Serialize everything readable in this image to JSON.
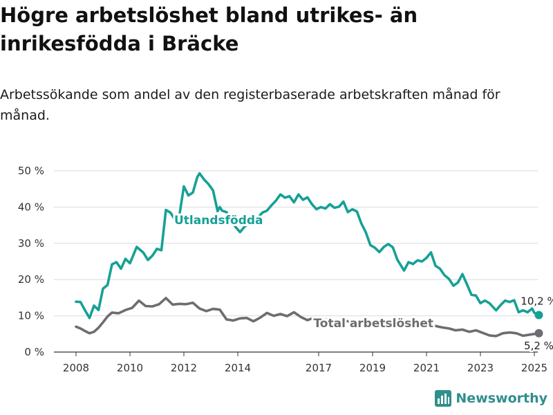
{
  "header": {
    "title": "Högre arbetslöshet bland utrikes- än inrikesfödda i Bräcke",
    "subtitle": "Arbetssökande som andel av den registerbaserade arbetskraften månad för månad."
  },
  "brand": {
    "name": "Newsworthy",
    "icon": "newsworthy-logo-icon",
    "color": "#2f8f8c"
  },
  "chart_data": {
    "type": "line",
    "title": "Högre arbetslöshet bland utrikes- än inrikesfödda i Bräcke",
    "subtitle": "Arbetssökande som andel av den registerbaserade arbetskraften månad för månad.",
    "xlabel": "",
    "ylabel": "",
    "x_range": [
      "2008-01",
      "2025-03"
    ],
    "x_ticks": [
      "2008",
      "2010",
      "2012",
      "2014",
      "2017",
      "2019",
      "2021",
      "2023",
      "2025"
    ],
    "y_range": [
      0,
      50
    ],
    "y_ticks": [
      0,
      10,
      20,
      30,
      40,
      50
    ],
    "y_tick_labels": [
      "0 %",
      "10 %",
      "20 %",
      "30 %",
      "40 %",
      "50 %"
    ],
    "grid": true,
    "series": [
      {
        "name": "Utlandsfödda",
        "color": "#16a096",
        "end_label": "10,2 %",
        "end_value": 10.2,
        "points": [
          [
            "2008-01",
            13.9
          ],
          [
            "2008-03",
            13.8
          ],
          [
            "2008-05",
            11.5
          ],
          [
            "2008-07",
            9.4
          ],
          [
            "2008-09",
            12.8
          ],
          [
            "2008-11",
            11.6
          ],
          [
            "2009-01",
            17.5
          ],
          [
            "2009-03",
            18.5
          ],
          [
            "2009-05",
            24.2
          ],
          [
            "2009-07",
            24.8
          ],
          [
            "2009-09",
            23.0
          ],
          [
            "2009-11",
            25.7
          ],
          [
            "2010-01",
            24.5
          ],
          [
            "2010-04",
            29.0
          ],
          [
            "2010-07",
            27.4
          ],
          [
            "2010-09",
            25.4
          ],
          [
            "2010-11",
            26.6
          ],
          [
            "2011-01",
            28.5
          ],
          [
            "2011-03",
            28.1
          ],
          [
            "2011-05",
            39.2
          ],
          [
            "2011-07",
            38.5
          ],
          [
            "2011-09",
            36.6
          ],
          [
            "2011-11",
            37.7
          ],
          [
            "2012-01",
            45.7
          ],
          [
            "2012-03",
            43.2
          ],
          [
            "2012-05",
            44.0
          ],
          [
            "2012-07",
            48.3
          ],
          [
            "2012-08",
            49.3
          ],
          [
            "2012-10",
            47.6
          ],
          [
            "2012-12",
            46.3
          ],
          [
            "2013-02",
            44.6
          ],
          [
            "2013-04",
            38.9
          ],
          [
            "2013-05",
            40.0
          ],
          [
            "2013-06",
            39.0
          ],
          [
            "2013-08",
            38.6
          ],
          [
            "2013-10",
            36.0
          ],
          [
            "2013-12",
            34.5
          ],
          [
            "2014-02",
            33.1
          ],
          [
            "2014-04",
            34.6
          ],
          [
            "2014-06",
            35.5
          ],
          [
            "2014-08",
            36.5
          ],
          [
            "2014-10",
            37.2
          ],
          [
            "2014-12",
            38.5
          ],
          [
            "2015-02",
            39.0
          ],
          [
            "2015-04",
            40.5
          ],
          [
            "2015-06",
            41.8
          ],
          [
            "2015-08",
            43.5
          ],
          [
            "2015-10",
            42.6
          ],
          [
            "2015-12",
            43.0
          ],
          [
            "2016-02",
            41.3
          ],
          [
            "2016-04",
            43.5
          ],
          [
            "2016-06",
            42.0
          ],
          [
            "2016-08",
            42.7
          ],
          [
            "2016-10",
            40.8
          ],
          [
            "2016-12",
            39.4
          ],
          [
            "2017-02",
            40.0
          ],
          [
            "2017-04",
            39.6
          ],
          [
            "2017-06",
            40.8
          ],
          [
            "2017-08",
            39.8
          ],
          [
            "2017-10",
            40.1
          ],
          [
            "2017-12",
            41.5
          ],
          [
            "2018-02",
            38.6
          ],
          [
            "2018-04",
            39.4
          ],
          [
            "2018-06",
            38.8
          ],
          [
            "2018-08",
            35.5
          ],
          [
            "2018-10",
            33.0
          ],
          [
            "2018-12",
            29.5
          ],
          [
            "2019-02",
            28.8
          ],
          [
            "2019-04",
            27.6
          ],
          [
            "2019-06",
            29.0
          ],
          [
            "2019-08",
            29.8
          ],
          [
            "2019-10",
            28.9
          ],
          [
            "2019-12",
            25.5
          ],
          [
            "2020-03",
            22.5
          ],
          [
            "2020-05",
            24.8
          ],
          [
            "2020-07",
            24.3
          ],
          [
            "2020-09",
            25.3
          ],
          [
            "2020-11",
            25.0
          ],
          [
            "2021-01",
            26.0
          ],
          [
            "2021-03",
            27.5
          ],
          [
            "2021-05",
            23.8
          ],
          [
            "2021-07",
            23.0
          ],
          [
            "2021-09",
            21.2
          ],
          [
            "2021-11",
            20.2
          ],
          [
            "2022-01",
            18.3
          ],
          [
            "2022-03",
            19.2
          ],
          [
            "2022-05",
            21.5
          ],
          [
            "2022-07",
            18.7
          ],
          [
            "2022-09",
            15.8
          ],
          [
            "2022-11",
            15.6
          ],
          [
            "2023-01",
            13.5
          ],
          [
            "2023-03",
            14.2
          ],
          [
            "2023-05",
            13.5
          ],
          [
            "2023-08",
            11.5
          ],
          [
            "2023-10",
            13.0
          ],
          [
            "2023-12",
            14.2
          ],
          [
            "2024-02",
            13.8
          ],
          [
            "2024-04",
            14.3
          ],
          [
            "2024-06",
            11.0
          ],
          [
            "2024-08",
            11.5
          ],
          [
            "2024-10",
            11.0
          ],
          [
            "2024-12",
            12.0
          ],
          [
            "2025-01",
            10.8
          ],
          [
            "2025-03",
            10.2
          ]
        ]
      },
      {
        "name": "Total arbetslöshet",
        "color": "#6f6b70",
        "end_label": "5,2 %",
        "end_value": 5.2,
        "points": [
          [
            "2008-01",
            7.0
          ],
          [
            "2008-03",
            6.5
          ],
          [
            "2008-05",
            5.8
          ],
          [
            "2008-07",
            5.2
          ],
          [
            "2008-09",
            5.6
          ],
          [
            "2008-11",
            6.7
          ],
          [
            "2009-01",
            8.2
          ],
          [
            "2009-03",
            9.8
          ],
          [
            "2009-05",
            10.9
          ],
          [
            "2009-08",
            10.7
          ],
          [
            "2009-11",
            11.6
          ],
          [
            "2010-02",
            12.2
          ],
          [
            "2010-05",
            14.2
          ],
          [
            "2010-08",
            12.7
          ],
          [
            "2010-11",
            12.6
          ],
          [
            "2011-02",
            13.2
          ],
          [
            "2011-05",
            14.9
          ],
          [
            "2011-08",
            13.1
          ],
          [
            "2011-11",
            13.3
          ],
          [
            "2012-02",
            13.2
          ],
          [
            "2012-05",
            13.6
          ],
          [
            "2012-08",
            12.0
          ],
          [
            "2012-11",
            11.3
          ],
          [
            "2013-02",
            11.9
          ],
          [
            "2013-05",
            11.7
          ],
          [
            "2013-08",
            9.0
          ],
          [
            "2013-11",
            8.7
          ],
          [
            "2014-02",
            9.3
          ],
          [
            "2014-05",
            9.4
          ],
          [
            "2014-08",
            8.5
          ],
          [
            "2014-11",
            9.5
          ],
          [
            "2015-02",
            10.8
          ],
          [
            "2015-05",
            10.0
          ],
          [
            "2015-08",
            10.5
          ],
          [
            "2015-11",
            9.9
          ],
          [
            "2016-02",
            11.0
          ],
          [
            "2016-05",
            9.7
          ],
          [
            "2016-08",
            8.8
          ],
          [
            "2016-11",
            9.5
          ],
          [
            "2017-02",
            8.7
          ],
          [
            "2017-05",
            9.0
          ],
          [
            "2017-08",
            8.2
          ],
          [
            "2017-11",
            8.8
          ],
          [
            "2018-02",
            8.5
          ],
          [
            "2018-05",
            8.0
          ],
          [
            "2018-08",
            8.3
          ],
          [
            "2018-11",
            7.8
          ],
          [
            "2019-02",
            8.0
          ],
          [
            "2019-05",
            7.6
          ],
          [
            "2019-08",
            8.2
          ],
          [
            "2019-11",
            7.8
          ],
          [
            "2020-02",
            7.5
          ],
          [
            "2020-05",
            8.3
          ],
          [
            "2020-08",
            7.8
          ],
          [
            "2020-11",
            7.4
          ],
          [
            "2021-02",
            7.7
          ],
          [
            "2021-05",
            7.2
          ],
          [
            "2021-08",
            6.8
          ],
          [
            "2021-11",
            6.5
          ],
          [
            "2022-02",
            6.0
          ],
          [
            "2022-05",
            6.2
          ],
          [
            "2022-08",
            5.6
          ],
          [
            "2022-11",
            6.0
          ],
          [
            "2023-02",
            5.3
          ],
          [
            "2023-05",
            4.6
          ],
          [
            "2023-08",
            4.4
          ],
          [
            "2023-11",
            5.2
          ],
          [
            "2024-02",
            5.4
          ],
          [
            "2024-05",
            5.2
          ],
          [
            "2024-08",
            4.5
          ],
          [
            "2024-11",
            4.8
          ],
          [
            "2025-01",
            5.0
          ],
          [
            "2025-03",
            5.2
          ]
        ]
      }
    ]
  }
}
